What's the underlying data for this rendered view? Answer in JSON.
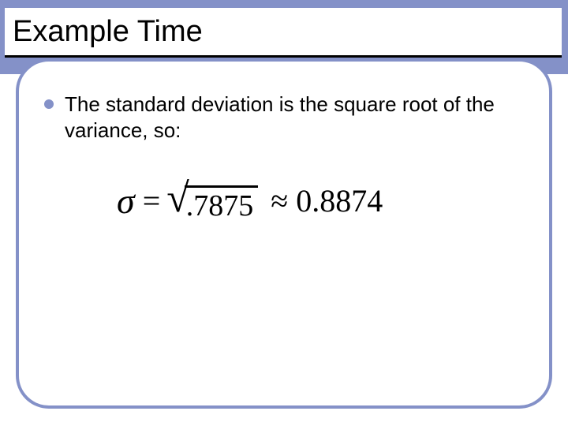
{
  "slide": {
    "title": "Example Time",
    "bullet_text": "The standard deviation is the square root of the variance, so:",
    "equation": {
      "sigma": "σ",
      "equals": "=",
      "radicand": ".7875",
      "approx": "≈",
      "result": "0.8874"
    }
  },
  "style": {
    "accent_color": "#8491c8",
    "background_color": "#ffffff",
    "text_color": "#000000",
    "title_fontsize": 38,
    "body_fontsize": 26,
    "equation_fontsize": 40,
    "frame_border_width": 4,
    "frame_border_radius": 42,
    "bullet_color": "#8491c8",
    "bullet_size": 12
  }
}
